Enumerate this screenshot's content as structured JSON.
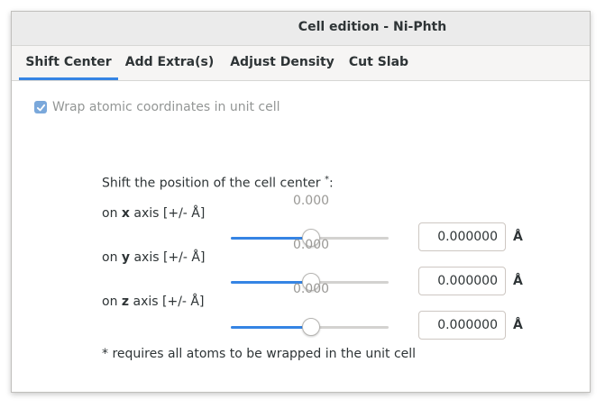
{
  "window": {
    "title": "Cell edition - Ni-Phth"
  },
  "tabs": [
    {
      "label": "Shift Center",
      "active": true
    },
    {
      "label": "Add Extra(s)",
      "active": false
    },
    {
      "label": "Adjust Density",
      "active": false
    },
    {
      "label": "Cut Slab",
      "active": false
    }
  ],
  "wrap": {
    "label": "Wrap atomic coordinates in unit cell",
    "checked": true
  },
  "shift": {
    "heading": "Shift the position of the cell center",
    "heading_mark": "*",
    "heading_colon": ":",
    "axes": [
      {
        "prefix": "on ",
        "axis": "x",
        "suffix": " axis [+/- Å]",
        "slider_value_label": "0.000",
        "slider_fraction": 0.5,
        "entry_value": "0.000000",
        "unit": "Å"
      },
      {
        "prefix": "on ",
        "axis": "y",
        "suffix": " axis [+/- Å]",
        "slider_value_label": "0.000",
        "slider_fraction": 0.5,
        "entry_value": "0.000000",
        "unit": "Å"
      },
      {
        "prefix": "on ",
        "axis": "z",
        "suffix": " axis [+/- Å]",
        "slider_value_label": "0.000",
        "slider_fraction": 0.5,
        "entry_value": "0.000000",
        "unit": "Å"
      }
    ],
    "footnote": "* requires all atoms to be wrapped in the unit cell"
  },
  "colors": {
    "accent": "#3584e4",
    "checkbox": "#7aa8db",
    "disabled_text": "#939695"
  }
}
